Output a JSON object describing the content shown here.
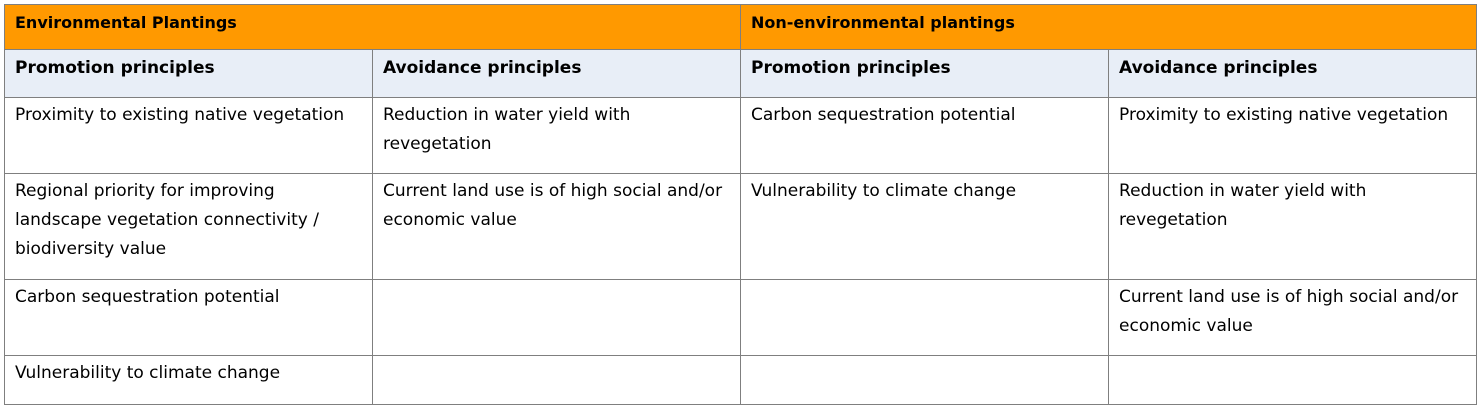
{
  "groups": [
    {
      "label": "Environmental Plantings"
    },
    {
      "label": "Non-environmental plantings"
    }
  ],
  "subheaders": [
    "Promotion principles",
    "Avoidance principles",
    "Promotion principles",
    "Avoidance principles"
  ],
  "rows": [
    [
      "Proximity to existing native vegetation",
      "Reduction in water yield with revegetation",
      "Carbon sequestration potential",
      "Proximity to existing native vegetation"
    ],
    [
      "Regional priority for improving landscape vegetation connectivity / biodiversity value",
      "Current land use is of high social and/or economic value",
      "Vulnerability to climate change",
      "Reduction in water yield with revegetation"
    ],
    [
      "Carbon sequestration potential",
      "",
      "",
      "Current land use is of high social and/or economic value"
    ],
    [
      "Vulnerability to climate change",
      "",
      "",
      ""
    ]
  ],
  "colors": {
    "group_header_bg": "#ff9900",
    "subheader_bg": "#e8eef7",
    "border": "#7f7f7f"
  }
}
